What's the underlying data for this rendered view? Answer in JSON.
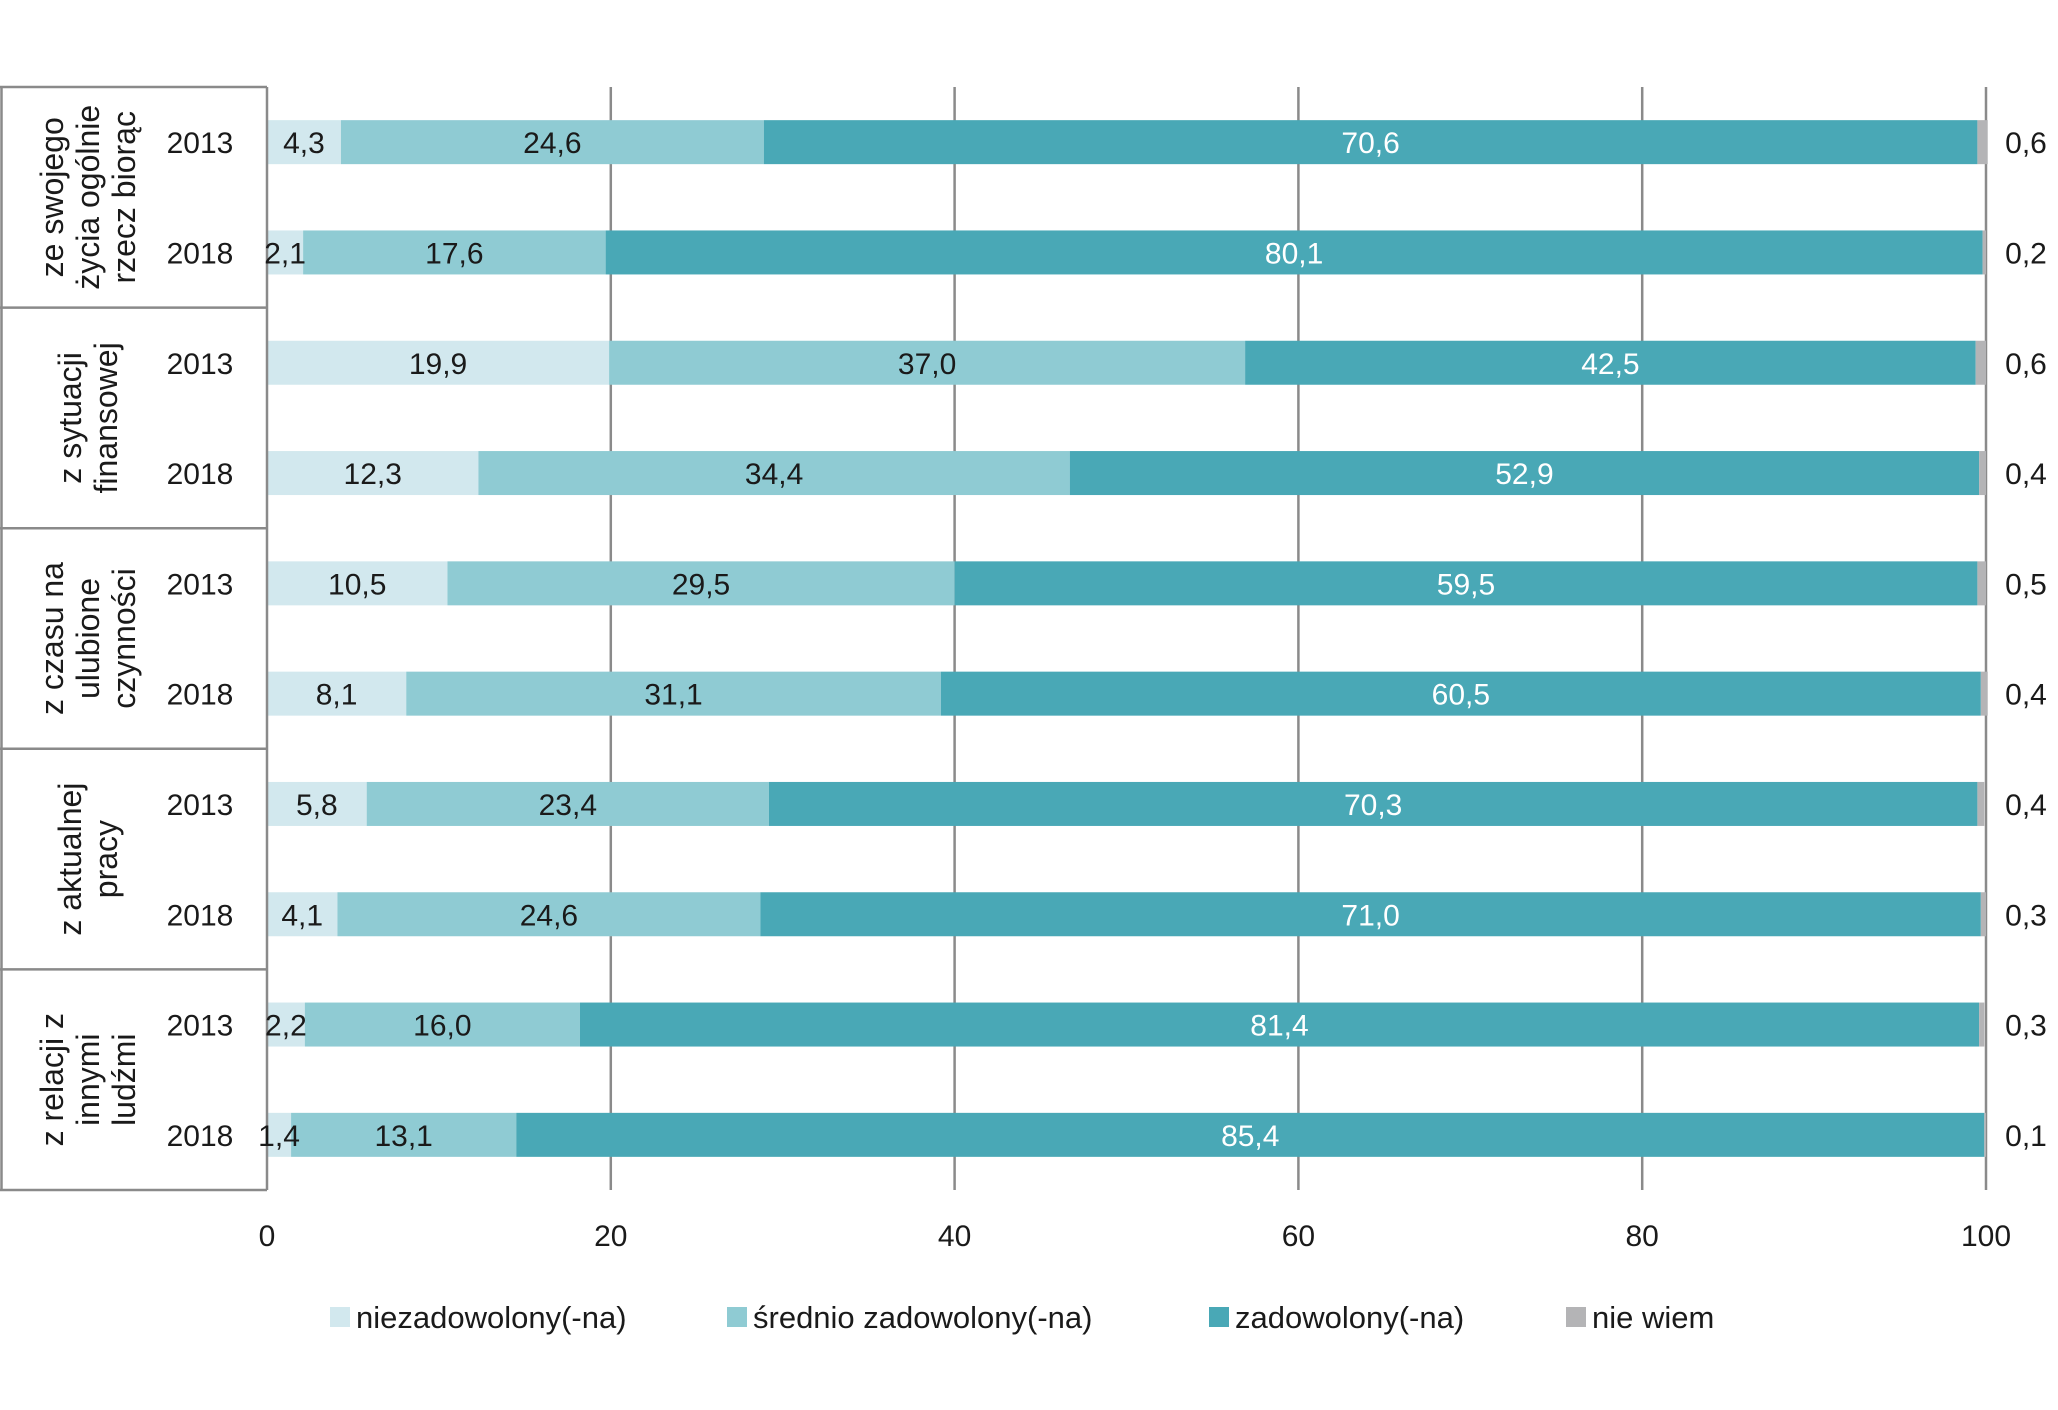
{
  "chart_data": {
    "type": "bar",
    "orientation": "horizontal",
    "stacked": true,
    "xlim": [
      0,
      100
    ],
    "xticks": [
      0,
      20,
      40,
      60,
      80,
      100
    ],
    "grid": true,
    "legend_position": "bottom",
    "groups": [
      {
        "label_lines": [
          "ze swojego",
          "życia ogólnie",
          "rzecz biorąc"
        ],
        "rows": [
          {
            "year": "2013",
            "values": [
              4.3,
              24.6,
              70.6,
              0.6
            ],
            "labels": [
              "4,3",
              "24,6",
              "70,6",
              "0,6"
            ]
          },
          {
            "year": "2018",
            "values": [
              2.1,
              17.6,
              80.1,
              0.2
            ],
            "labels": [
              "2,1",
              "17,6",
              "80,1",
              "0,2"
            ]
          }
        ]
      },
      {
        "label_lines": [
          "z sytuacji",
          "finansowej"
        ],
        "rows": [
          {
            "year": "2013",
            "values": [
              19.9,
              37.0,
              42.5,
              0.6
            ],
            "labels": [
              "19,9",
              "37,0",
              "42,5",
              "0,6"
            ]
          },
          {
            "year": "2018",
            "values": [
              12.3,
              34.4,
              52.9,
              0.4
            ],
            "labels": [
              "12,3",
              "34,4",
              "52,9",
              "0,4"
            ]
          }
        ]
      },
      {
        "label_lines": [
          "z czasu na",
          "ulubione",
          "czynności"
        ],
        "rows": [
          {
            "year": "2013",
            "values": [
              10.5,
              29.5,
              59.5,
              0.5
            ],
            "labels": [
              "10,5",
              "29,5",
              "59,5",
              "0,5"
            ]
          },
          {
            "year": "2018",
            "values": [
              8.1,
              31.1,
              60.5,
              0.4
            ],
            "labels": [
              "8,1",
              "31,1",
              "60,5",
              "0,4"
            ]
          }
        ]
      },
      {
        "label_lines": [
          "z aktualnej",
          "pracy"
        ],
        "rows": [
          {
            "year": "2013",
            "values": [
              5.8,
              23.4,
              70.3,
              0.4
            ],
            "labels": [
              "5,8",
              "23,4",
              "70,3",
              "0,4"
            ]
          },
          {
            "year": "2018",
            "values": [
              4.1,
              24.6,
              71.0,
              0.3
            ],
            "labels": [
              "4,1",
              "24,6",
              "71,0",
              "0,3"
            ]
          }
        ]
      },
      {
        "label_lines": [
          "z relacji z",
          "innymi",
          "ludźmi"
        ],
        "rows": [
          {
            "year": "2013",
            "values": [
              2.2,
              16.0,
              81.4,
              0.3
            ],
            "labels": [
              "2,2",
              "16,0",
              "81,4",
              "0,3"
            ]
          },
          {
            "year": "2018",
            "values": [
              1.4,
              13.1,
              85.4,
              0.1
            ],
            "labels": [
              "1,4",
              "13,1",
              "85,4",
              "0,1"
            ]
          }
        ]
      }
    ],
    "series": [
      {
        "name": "niezadowolony(-na)",
        "color": "#d2e8ee",
        "label_color": "#1a1a1a"
      },
      {
        "name": "średnio zadowolony(-na)",
        "color": "#8fcbd3",
        "label_color": "#1a1a1a"
      },
      {
        "name": "zadowolony(-na)",
        "color": "#49a8b6",
        "label_color": "#ffffff"
      },
      {
        "name": "nie wiem",
        "color": "#b4b4b6",
        "label_color": "#1a1a1a"
      }
    ]
  }
}
